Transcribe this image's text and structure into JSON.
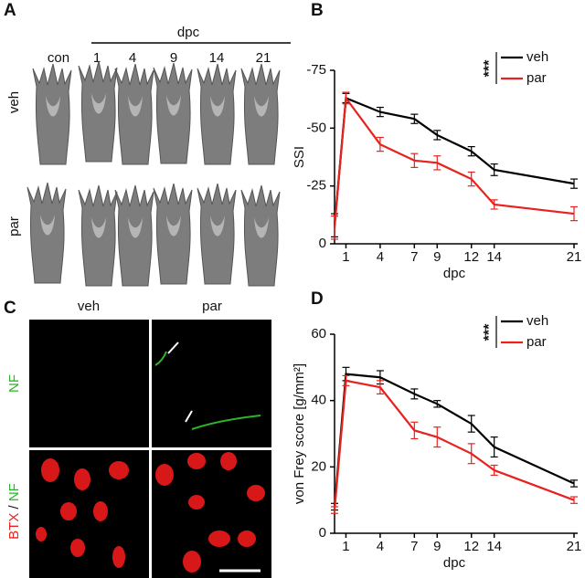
{
  "panels": {
    "a": {
      "label": "A",
      "group": "dpc",
      "columns": [
        "con",
        "1",
        "4",
        "9",
        "14",
        "21"
      ],
      "rows": [
        "veh",
        "par"
      ]
    },
    "c": {
      "label": "C",
      "columns": [
        "veh",
        "par"
      ],
      "top_row": "NF",
      "bottom_row": [
        "BTX",
        "/",
        "NF"
      ]
    }
  },
  "chart_data": [
    {
      "type": "line",
      "panel_label": "B",
      "ylabel": "SSI",
      "xlabel": "dpc",
      "x": [
        0,
        1,
        4,
        7,
        9,
        12,
        14,
        21
      ],
      "xlim": [
        0,
        21
      ],
      "xticks": [
        1,
        4,
        7,
        9,
        12,
        14,
        21
      ],
      "ylim": [
        0,
        -75
      ],
      "yticks": [
        -75,
        -50,
        -25,
        0
      ],
      "significance": "***",
      "series": [
        {
          "name": "veh",
          "color": "#000000",
          "values": [
            -8,
            -63,
            -57,
            -54,
            -47,
            -40,
            -32,
            -26
          ],
          "errors": [
            5,
            2,
            2,
            2,
            2,
            2,
            2.5,
            2
          ]
        },
        {
          "name": "par",
          "color": "#e8221e",
          "values": [
            -7,
            -63,
            -43,
            -36,
            -35,
            -28,
            -17,
            -13
          ],
          "errors": [
            5,
            2.5,
            3,
            3,
            3,
            3,
            2,
            3
          ]
        }
      ]
    },
    {
      "type": "line",
      "panel_label": "D",
      "ylabel": "von Frey score [g/mm²]",
      "xlabel": "dpc",
      "x": [
        0,
        1,
        4,
        7,
        9,
        12,
        14,
        21
      ],
      "xlim": [
        0,
        21
      ],
      "xticks": [
        1,
        4,
        7,
        9,
        12,
        14,
        21
      ],
      "ylim": [
        0,
        60
      ],
      "yticks": [
        0,
        20,
        40,
        60
      ],
      "significance": "***",
      "series": [
        {
          "name": "veh",
          "color": "#000000",
          "values": [
            8,
            48,
            47,
            42,
            39,
            33,
            26,
            15
          ],
          "errors": [
            1,
            2,
            2,
            1.5,
            1,
            2.5,
            3,
            1
          ]
        },
        {
          "name": "par",
          "color": "#e8221e",
          "values": [
            7,
            46,
            44,
            31,
            29,
            24,
            19,
            10
          ],
          "errors": [
            1,
            1.5,
            2,
            2.5,
            3,
            3,
            1.5,
            1
          ]
        }
      ]
    }
  ]
}
